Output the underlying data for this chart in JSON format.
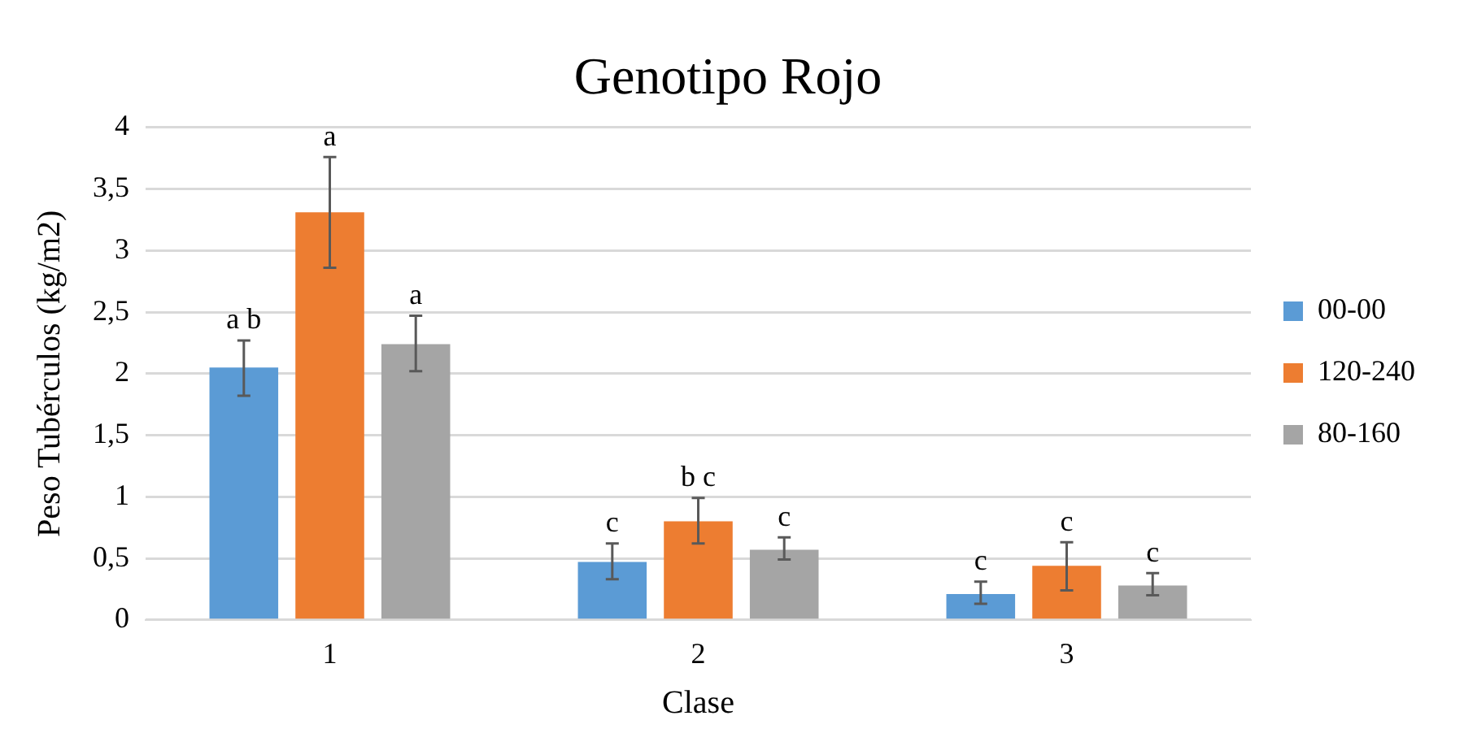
{
  "chart_data": {
    "type": "bar",
    "title": "Genotipo Rojo",
    "xlabel": "Clase",
    "ylabel": "Peso Tubérculos (kg/m2)",
    "categories": [
      "1",
      "2",
      "3"
    ],
    "series": [
      {
        "name": "00-00",
        "color": "#5b9bd5",
        "values": [
          2.05,
          0.47,
          0.21
        ],
        "errors": [
          [
            1.82,
            2.27
          ],
          [
            0.33,
            0.62
          ],
          [
            0.13,
            0.31
          ]
        ]
      },
      {
        "name": "120-240",
        "color": "#ed7d31",
        "values": [
          3.31,
          0.8,
          0.44
        ],
        "errors": [
          [
            2.86,
            3.76
          ],
          [
            0.62,
            0.99
          ],
          [
            0.24,
            0.63
          ]
        ]
      },
      {
        "name": "80-160",
        "color": "#a5a5a5",
        "values": [
          2.24,
          0.57,
          0.28
        ],
        "errors": [
          [
            2.02,
            2.47
          ],
          [
            0.49,
            0.67
          ],
          [
            0.2,
            0.38
          ]
        ]
      }
    ],
    "ylim": [
      0,
      4
    ],
    "yticks": [
      {
        "value": 0,
        "label": "0"
      },
      {
        "value": 0.5,
        "label": "0,5"
      },
      {
        "value": 1,
        "label": "1"
      },
      {
        "value": 1.5,
        "label": "1,5"
      },
      {
        "value": 2,
        "label": "2"
      },
      {
        "value": 2.5,
        "label": "2,5"
      },
      {
        "value": 3,
        "label": "3"
      },
      {
        "value": 3.5,
        "label": "3,5"
      },
      {
        "value": 4,
        "label": "4"
      }
    ],
    "grid": "y",
    "legend": "right",
    "annotations": [
      "a b",
      {
        "text": "a",
        "x": "1",
        "y": 3.76
      },
      "a",
      {
        "text": "c",
        "x": "2",
        "y": 0.62
      },
      {
        "text": "b c",
        "x": "2",
        "y": 0.99
      },
      {
        "text": "c",
        "x": "2",
        "y": 0.67
      },
      {
        "text": "c",
        "x": "3",
        "y": 0.31
      },
      {
        "text": "c",
        "x": "3",
        "y": 0.63
      },
      {
        "text": "c",
        "x": "3",
        "y": 0.38
      }
    ]
  }
}
